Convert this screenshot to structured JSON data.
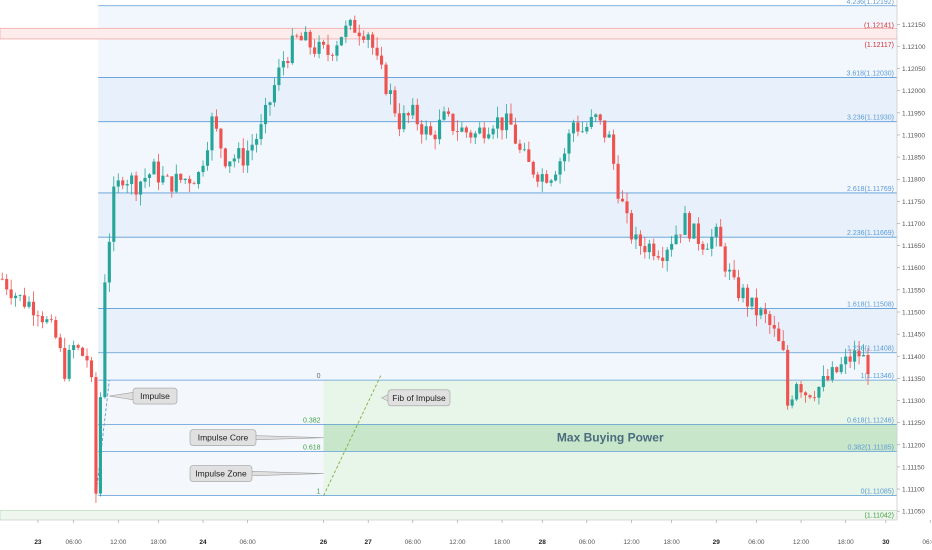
{
  "chart_data": {
    "type": "candlestick",
    "instrument_note": "",
    "y_axis": {
      "range": [
        1.1103,
        1.12205
      ],
      "ticks": [
        "1.12200",
        "1.12150",
        "1.12100",
        "1.12050",
        "1.12000",
        "1.11950",
        "1.11900",
        "1.11850",
        "1.11800",
        "1.11750",
        "1.11700",
        "1.11650",
        "1.11600",
        "1.11550",
        "1.11500",
        "1.11450",
        "1.11400",
        "1.11350",
        "1.11300",
        "1.11250",
        "1.11200",
        "1.11150",
        "1.11100",
        "1.11050"
      ]
    },
    "x_axis": {
      "ticks": [
        "23",
        "06:00",
        "12:00",
        "18:00",
        "24",
        "06:00",
        "26",
        "27",
        "06:00",
        "12:00",
        "18:00",
        "28",
        "06:00",
        "12:00",
        "18:00",
        "29",
        "06:00",
        "12:00",
        "18:00",
        "30",
        "06:00"
      ],
      "tick_bars": [
        8,
        16,
        26,
        35,
        45,
        55,
        72,
        82,
        92,
        102,
        112,
        121,
        131,
        141,
        150,
        160,
        169,
        179,
        189,
        198,
        208
      ]
    },
    "series_ohlc_anchors": [
      [
        0,
        1.11575
      ],
      [
        4,
        1.1153
      ],
      [
        8,
        1.1151
      ],
      [
        12,
        1.1144
      ],
      [
        14,
        1.1137
      ],
      [
        16,
        1.1142
      ],
      [
        19,
        1.11395
      ],
      [
        20,
        1.1133
      ],
      [
        21,
        1.1109
      ],
      [
        22,
        1.1131
      ],
      [
        23,
        1.1158
      ],
      [
        25,
        1.1176
      ],
      [
        27,
        1.1181
      ],
      [
        30,
        1.1179
      ],
      [
        34,
        1.1182
      ],
      [
        37,
        1.1179
      ],
      [
        44,
        1.1181
      ],
      [
        47,
        1.1193
      ],
      [
        50,
        1.1185
      ],
      [
        54,
        1.1185
      ],
      [
        58,
        1.1191
      ],
      [
        61,
        1.1201
      ],
      [
        63,
        1.1207
      ],
      [
        66,
        1.12115
      ],
      [
        68,
        1.1211
      ],
      [
        71,
        1.1209
      ],
      [
        73,
        1.12085
      ],
      [
        76,
        1.1213
      ],
      [
        79,
        1.12145
      ],
      [
        82,
        1.12135
      ],
      [
        84,
        1.1206
      ],
      [
        87,
        1.1199
      ],
      [
        89,
        1.1193
      ],
      [
        92,
        1.11945
      ],
      [
        96,
        1.11895
      ],
      [
        99,
        1.11935
      ],
      [
        102,
        1.11915
      ],
      [
        106,
        1.119
      ],
      [
        110,
        1.11935
      ],
      [
        114,
        1.1192
      ],
      [
        116,
        1.1186
      ],
      [
        118,
        1.1183
      ],
      [
        121,
        1.1181
      ],
      [
        123,
        1.11815
      ],
      [
        126,
        1.1186
      ],
      [
        128,
        1.1193
      ],
      [
        130,
        1.1191
      ],
      [
        133,
        1.11935
      ],
      [
        136,
        1.1189
      ],
      [
        138,
        1.1178
      ],
      [
        140,
        1.117
      ],
      [
        142,
        1.11655
      ],
      [
        145,
        1.1165
      ],
      [
        148,
        1.1164
      ],
      [
        151,
        1.1168
      ],
      [
        153,
        1.11705
      ],
      [
        155,
        1.11675
      ],
      [
        157,
        1.1166
      ],
      [
        160,
        1.1167
      ],
      [
        162,
        1.1161
      ],
      [
        164,
        1.11555
      ],
      [
        166,
        1.1154
      ],
      [
        168,
        1.1151
      ],
      [
        171,
        1.11485
      ],
      [
        173,
        1.1145
      ],
      [
        175,
        1.114
      ],
      [
        176,
        1.1129
      ],
      [
        178,
        1.1135
      ],
      [
        180,
        1.1132
      ],
      [
        183,
        1.1133
      ],
      [
        186,
        1.11355
      ],
      [
        188,
        1.11375
      ],
      [
        190,
        1.11395
      ],
      [
        192,
        1.11405
      ],
      [
        194,
        1.1138
      ]
    ],
    "fib_levels": [
      {
        "label": "4.236(1.12192)",
        "value": 1.12192,
        "color": "#5b9bd5"
      },
      {
        "label": "3.618(1.12030)",
        "value": 1.1203,
        "color": "#5b9bd5"
      },
      {
        "label": "3.236(1.11930)",
        "value": 1.1193,
        "color": "#5b9bd5"
      },
      {
        "label": "2.618(1.11769)",
        "value": 1.11769,
        "color": "#5b9bd5"
      },
      {
        "label": "2.236(1.11669)",
        "value": 1.11669,
        "color": "#5b9bd5"
      },
      {
        "label": "1.618(1.11508)",
        "value": 1.11508,
        "color": "#5b9bd5"
      },
      {
        "label": "1.236(1.11408)",
        "value": 1.11408,
        "color": "#5b9bd5"
      },
      {
        "label": "1(1.11346)",
        "value": 1.11346,
        "color": "#5b9bd5"
      },
      {
        "label": "0.618(1.11246)",
        "value": 1.11246,
        "color": "#5b9bd5"
      },
      {
        "label": "0.382(1.11185)",
        "value": 1.11185,
        "color": "#5b9bd5"
      },
      {
        "label": "0(1.11085)",
        "value": 1.11085,
        "color": "#5b9bd5"
      }
    ],
    "resistance_zone": {
      "labels": [
        "(1.12141)",
        "(1.12117)"
      ],
      "values": [
        1.12141,
        1.12117
      ],
      "color": "#e57373"
    },
    "bottom_label": {
      "label": "(1.11042)",
      "value": 1.11042,
      "color": "#43a047"
    },
    "left_fib": {
      "labels": [
        "0",
        "0.382",
        "0.618",
        "1"
      ],
      "values": [
        1.11346,
        1.11246,
        1.11185,
        1.11085
      ]
    },
    "annotations": [
      {
        "text": "Impulse",
        "value": 1.1131
      },
      {
        "text": "Impulse Core",
        "value": 1.11216
      },
      {
        "text": "Impulse Zone",
        "value": 1.11135
      },
      {
        "text": "Fib of Impulse",
        "value": 1.11306
      }
    ],
    "zone_text": "Max Buying Power",
    "colors": {
      "up": "#26a69a",
      "down": "#ef5350",
      "fib": "#5b9bd5",
      "fib_fill": "#e8f1fb",
      "zone_text": "#4a6b80",
      "green_zone": "#c8e6c9",
      "green_zone_light": "#e8f5e9"
    }
  }
}
